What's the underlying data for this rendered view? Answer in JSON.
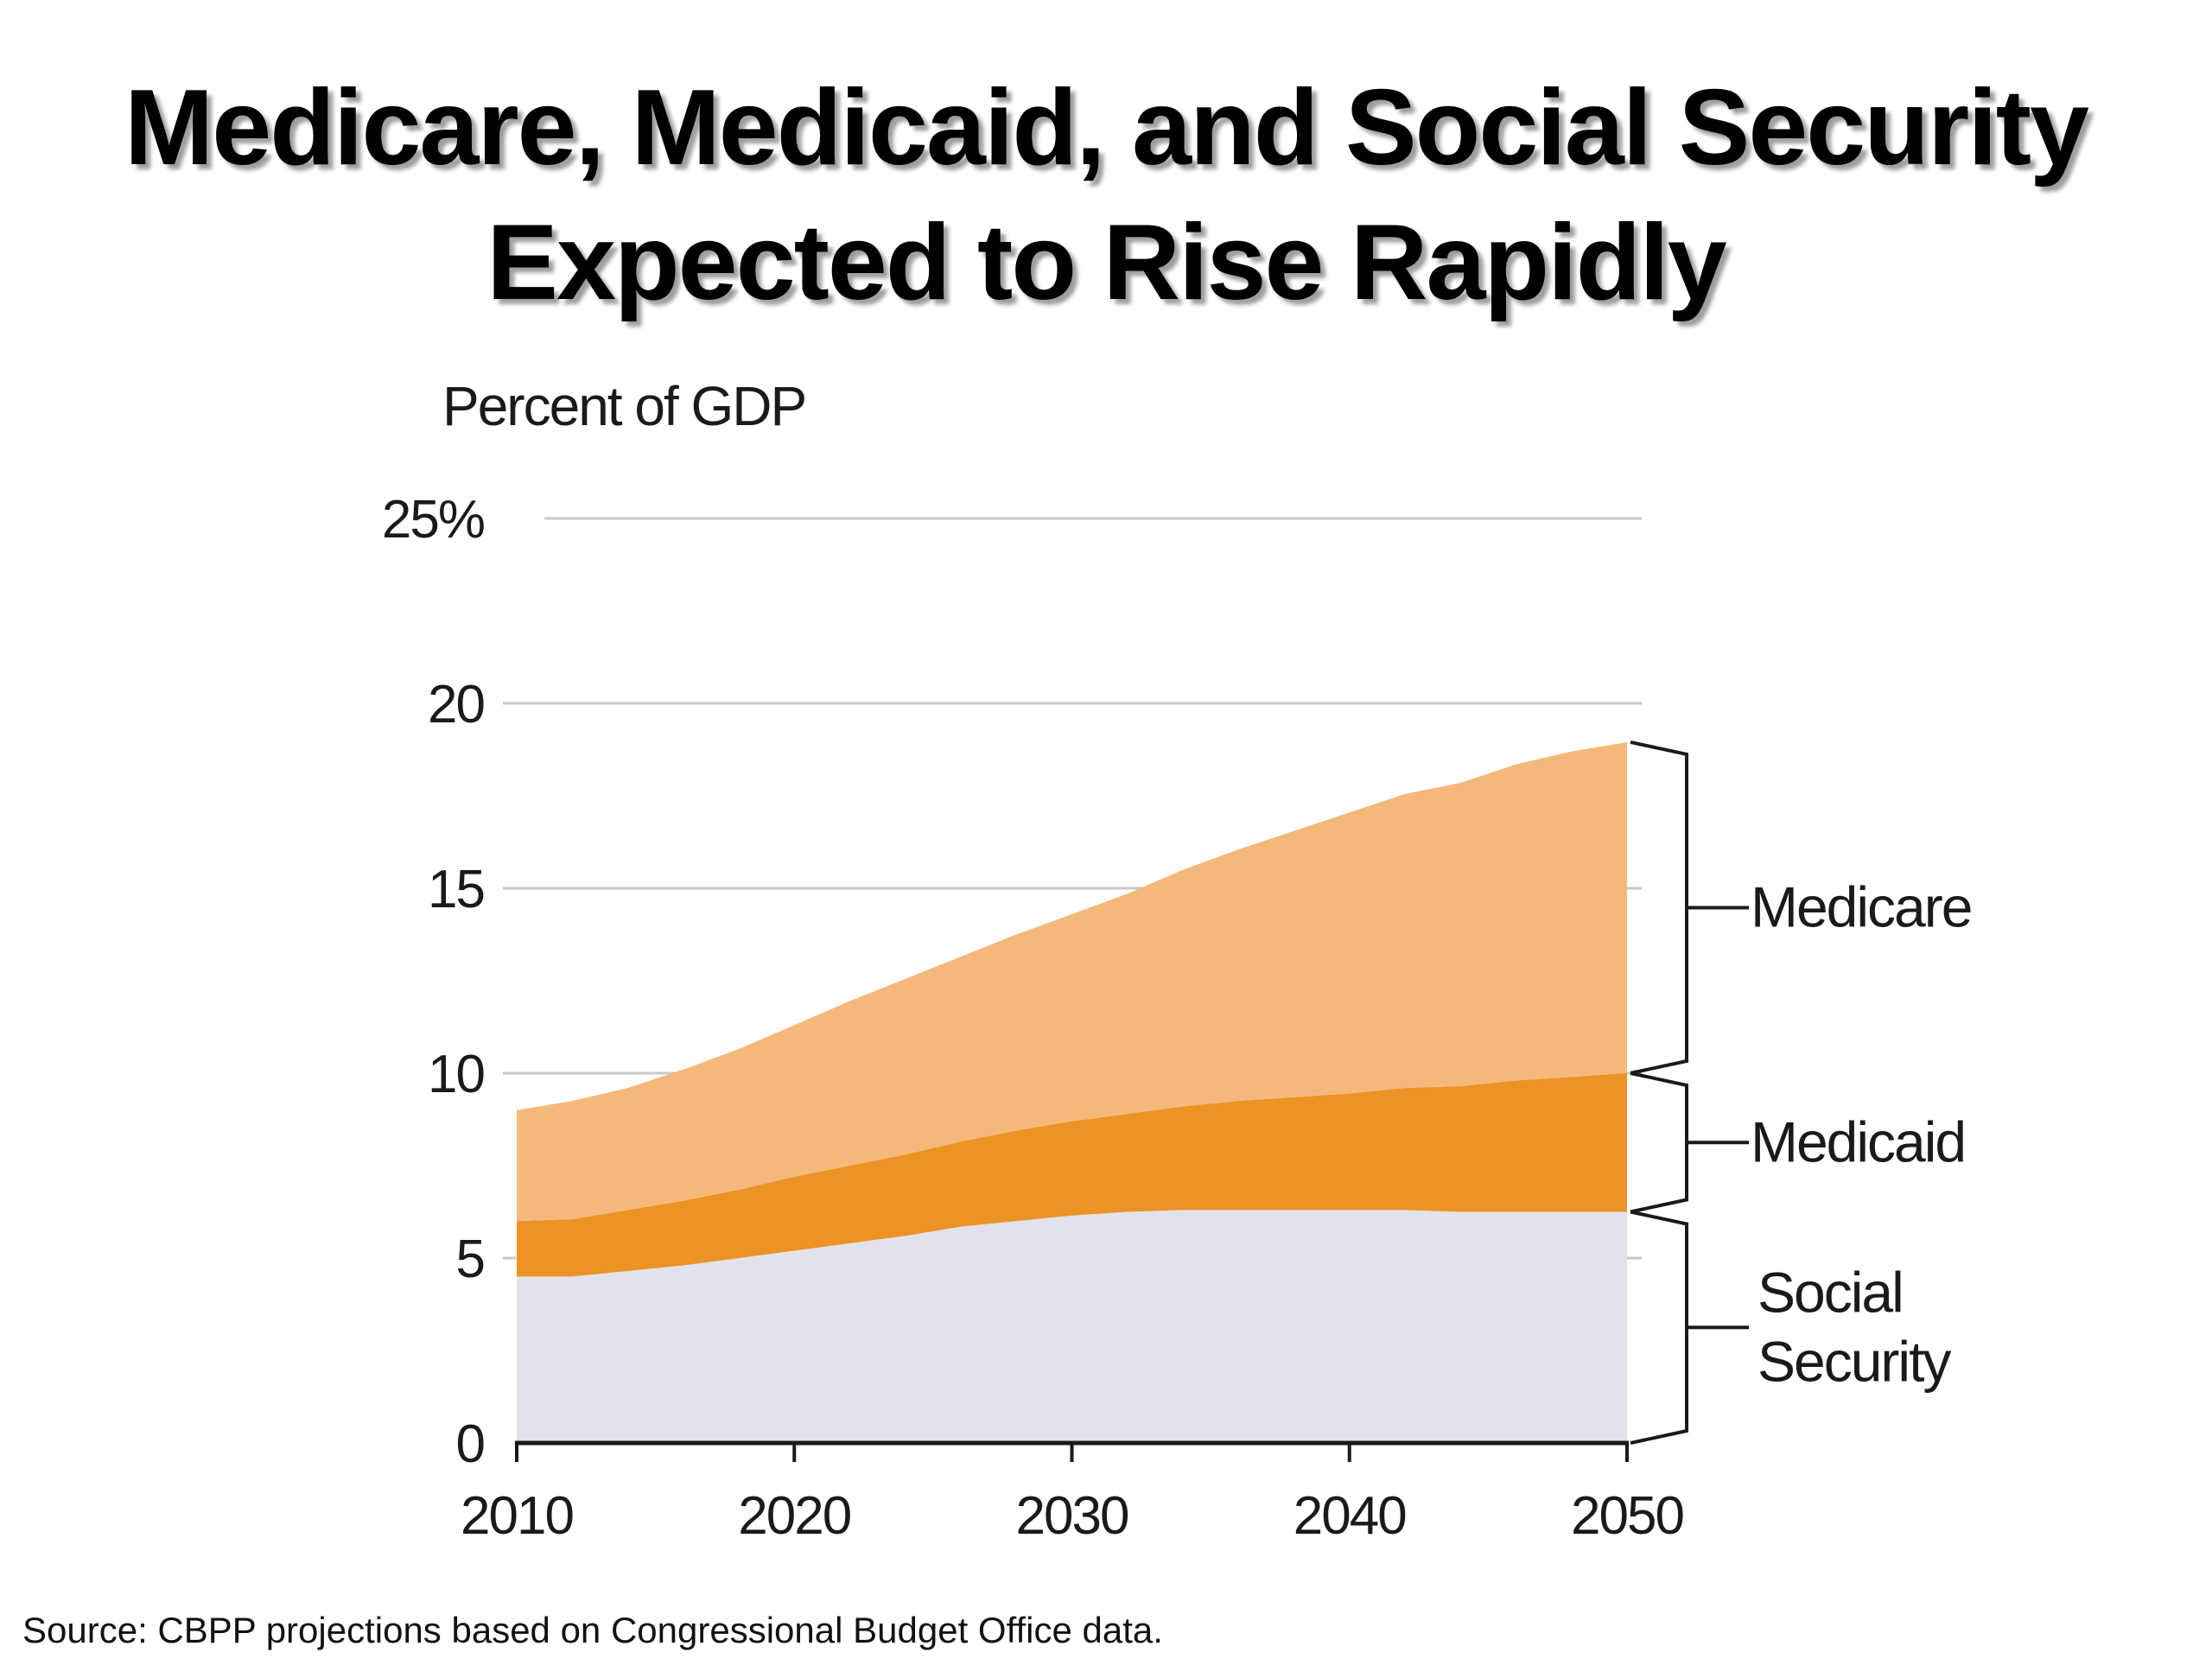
{
  "title": {
    "line1": "Medicare, Medicaid, and Social Security",
    "line2": "Expected to Rise Rapidly"
  },
  "source": "Source: CBPP projections based on Congressional Budget Office data.",
  "chart_data": {
    "type": "area",
    "stacked": true,
    "title": "Medicare, Medicaid, and Social Security Expected to Rise Rapidly",
    "ylabel": "Percent of GDP",
    "xlabel": "",
    "xlim": [
      2010,
      2050
    ],
    "ylim": [
      0,
      25
    ],
    "x_ticks": [
      "2010",
      "2020",
      "2030",
      "2040",
      "2050"
    ],
    "y_ticks": [
      "0",
      "5",
      "10",
      "15",
      "20",
      "25%"
    ],
    "grid": true,
    "x": [
      2010,
      2012,
      2014,
      2016,
      2018,
      2020,
      2022,
      2024,
      2026,
      2028,
      2030,
      2032,
      2034,
      2036,
      2038,
      2040,
      2042,
      2044,
      2046,
      2048,
      2050
    ],
    "series": [
      {
        "name": "Social Security",
        "color": "#e1e2ec",
        "values": [
          4.5,
          4.5,
          4.65,
          4.8,
          5.0,
          5.2,
          5.4,
          5.6,
          5.85,
          6.0,
          6.15,
          6.25,
          6.3,
          6.3,
          6.3,
          6.3,
          6.3,
          6.25,
          6.25,
          6.25,
          6.25
        ]
      },
      {
        "name": "Medicaid",
        "color": "#ec9326",
        "values": [
          1.5,
          1.55,
          1.65,
          1.75,
          1.85,
          2.0,
          2.1,
          2.2,
          2.3,
          2.45,
          2.55,
          2.65,
          2.8,
          2.95,
          3.05,
          3.15,
          3.3,
          3.4,
          3.55,
          3.65,
          3.75
        ]
      },
      {
        "name": "Medicare",
        "color": "#f5b87b",
        "values": [
          3.0,
          3.2,
          3.3,
          3.55,
          3.8,
          4.1,
          4.45,
          4.75,
          5.0,
          5.3,
          5.6,
          5.95,
          6.4,
          6.8,
          7.2,
          7.6,
          7.95,
          8.2,
          8.55,
          8.8,
          8.95
        ]
      }
    ],
    "bracket_labels": [
      {
        "series": "Medicare",
        "lines": [
          "Medicare"
        ]
      },
      {
        "series": "Medicaid",
        "lines": [
          "Medicaid"
        ]
      },
      {
        "series": "Social Security",
        "lines": [
          "Social",
          "Security"
        ]
      }
    ]
  }
}
